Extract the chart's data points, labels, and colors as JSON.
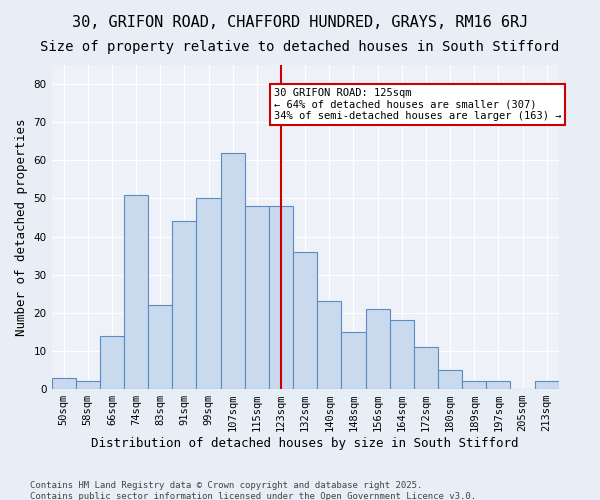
{
  "title1": "30, GRIFON ROAD, CHAFFORD HUNDRED, GRAYS, RM16 6RJ",
  "title2": "Size of property relative to detached houses in South Stifford",
  "xlabel": "Distribution of detached houses by size in South Stifford",
  "ylabel": "Number of detached properties",
  "categories": [
    "50sqm",
    "58sqm",
    "66sqm",
    "74sqm",
    "83sqm",
    "91sqm",
    "99sqm",
    "107sqm",
    "115sqm",
    "123sqm",
    "132sqm",
    "140sqm",
    "148sqm",
    "156sqm",
    "164sqm",
    "172sqm",
    "180sqm",
    "189sqm",
    "197sqm",
    "205sqm",
    "213sqm"
  ],
  "values": [
    3,
    2,
    14,
    51,
    22,
    44,
    50,
    62,
    48,
    48,
    36,
    23,
    15,
    21,
    18,
    11,
    5,
    2,
    2,
    0,
    2
  ],
  "bar_color": "#c9d9ee",
  "bar_edge_color": "#5b8bbf",
  "bar_width": 1.0,
  "ylim": [
    0,
    85
  ],
  "yticks": [
    0,
    10,
    20,
    30,
    40,
    50,
    60,
    70,
    80
  ],
  "vline_x": 9,
  "vline_color": "#cc0000",
  "annotation_text": "30 GRIFON ROAD: 125sqm\n← 64% of detached houses are smaller (307)\n34% of semi-detached houses are larger (163) →",
  "annotation_box_color": "#cc0000",
  "footer1": "Contains HM Land Registry data © Crown copyright and database right 2025.",
  "footer2": "Contains public sector information licensed under the Open Government Licence v3.0.",
  "bg_color": "#e8eef5",
  "plot_bg_color": "#eef2f8",
  "grid_color": "#ffffff",
  "title_fontsize": 11,
  "subtitle_fontsize": 10,
  "tick_fontsize": 7.5,
  "label_fontsize": 9
}
